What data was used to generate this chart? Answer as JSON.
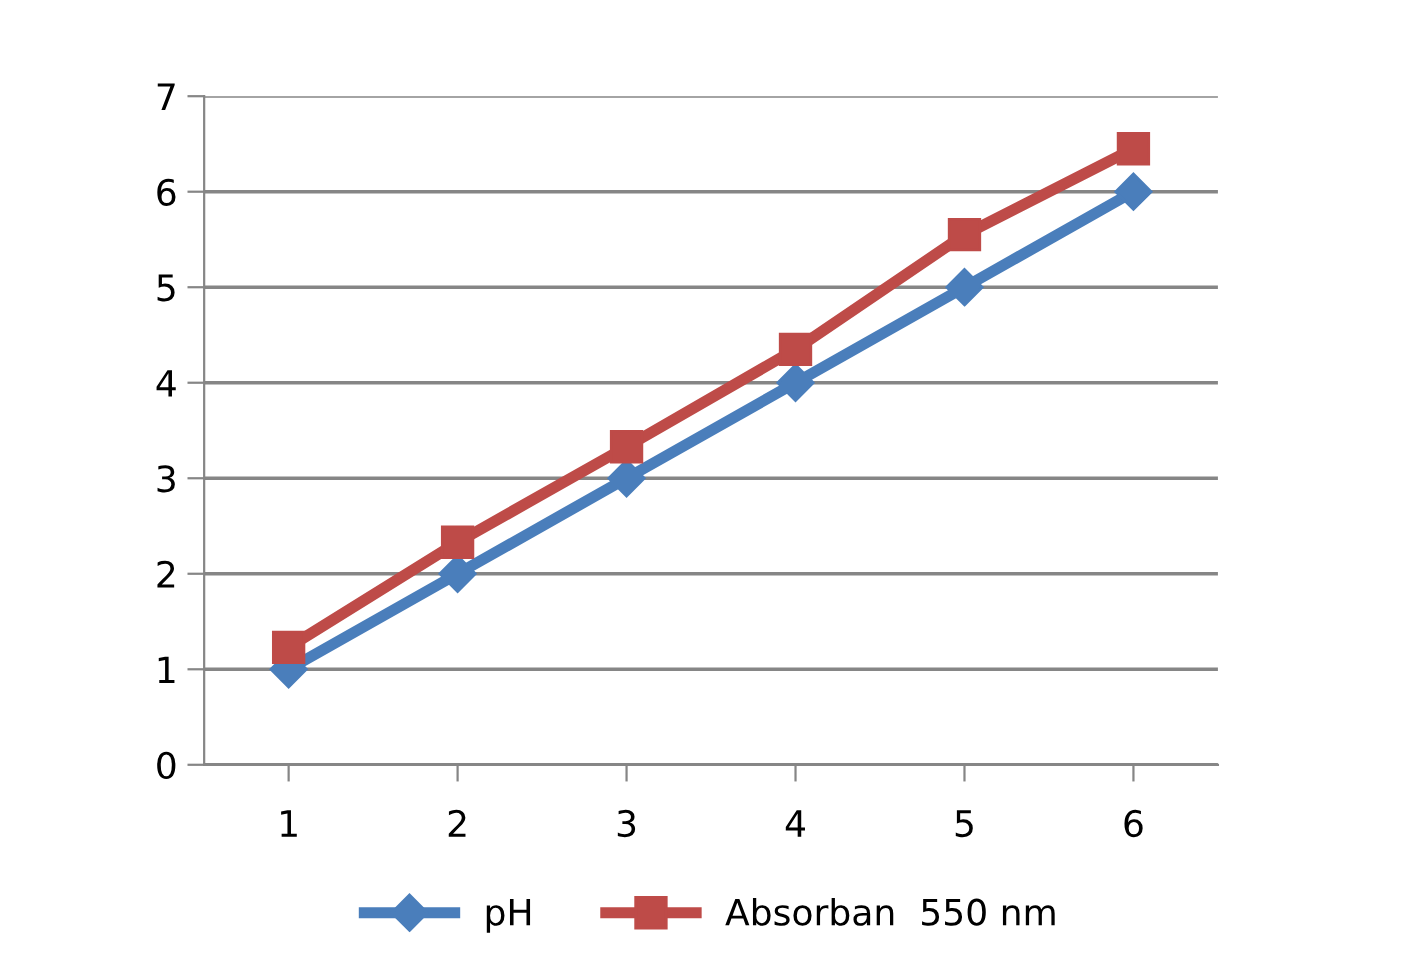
{
  "chart_data": {
    "type": "line",
    "categories": [
      "1",
      "2",
      "3",
      "4",
      "5",
      "6"
    ],
    "series": [
      {
        "name": "pH",
        "color": "#4a7ebb",
        "marker": "diamond",
        "values": [
          1,
          2,
          3,
          4,
          5,
          6
        ]
      },
      {
        "name": "Absorban  550 nm",
        "color": "#be4b48",
        "marker": "square",
        "values": [
          1.23,
          2.33,
          3.33,
          4.35,
          5.55,
          6.45
        ]
      }
    ],
    "ylim": [
      0,
      7
    ],
    "yticks": [
      0,
      1,
      2,
      3,
      4,
      5,
      6,
      7
    ],
    "grid": "y",
    "legend": "bottom",
    "line_style": "solid"
  }
}
